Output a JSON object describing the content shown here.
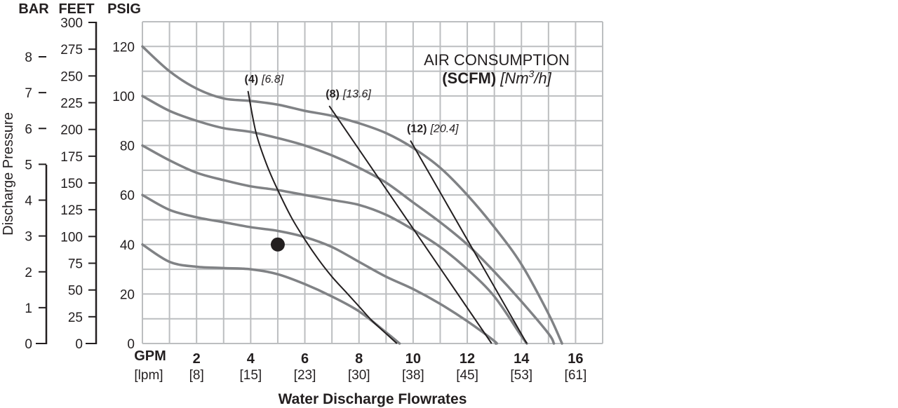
{
  "axis_headers": {
    "bar": "BAR",
    "feet": "FEET",
    "psig": "PSIG"
  },
  "ylabel": "Discharge Pressure",
  "xlabel": "Water Discharge Flowrates",
  "legend": {
    "line1": "AIR CONSUMPTION",
    "line2_bold": "(SCFM)",
    "line2_italic_a": "[Nm",
    "line2_sup": "3",
    "line2_italic_b": "/h]"
  },
  "colors": {
    "grid": "#bcbec0",
    "pressure_curve": "#808285",
    "air_curve": "#231f20",
    "text": "#231f20"
  },
  "chart_data": {
    "type": "line",
    "x_unit": "GPM",
    "x_unit_alt": "[lpm]",
    "y_unit": "PSIG",
    "xlim": [
      0,
      17
    ],
    "ylim": [
      0,
      130
    ],
    "grid": true,
    "x_ticks": [
      {
        "main": "2",
        "sub": "[8]"
      },
      {
        "main": "4",
        "sub": "[15]"
      },
      {
        "main": "6",
        "sub": "[23]"
      },
      {
        "main": "8",
        "sub": "[30]"
      },
      {
        "main": "10",
        "sub": "[38]"
      },
      {
        "main": "12",
        "sub": "[45]"
      },
      {
        "main": "14",
        "sub": "[53]"
      },
      {
        "main": "16",
        "sub": "[61]"
      }
    ],
    "psig_ticks": [
      "120",
      "100",
      "80",
      "60",
      "40",
      "20",
      "0"
    ],
    "feet_ticks": [
      "300",
      "275",
      "250",
      "225",
      "200",
      "175",
      "150",
      "125",
      "100",
      "75",
      "50",
      "25",
      "0"
    ],
    "bar_ticks": [
      "8",
      "7",
      "6",
      "5",
      "4",
      "3",
      "2",
      "1",
      "0"
    ],
    "pressure_series": [
      {
        "points": [
          [
            0,
            120
          ],
          [
            1,
            110
          ],
          [
            2,
            103
          ],
          [
            3,
            99
          ],
          [
            4,
            98
          ],
          [
            5,
            96.5
          ],
          [
            6,
            94
          ],
          [
            7,
            92
          ],
          [
            8,
            89
          ],
          [
            9,
            85
          ],
          [
            10,
            79
          ],
          [
            11,
            71
          ],
          [
            12,
            60
          ],
          [
            13,
            47
          ],
          [
            14,
            32
          ],
          [
            15,
            12
          ],
          [
            15.5,
            0
          ]
        ]
      },
      {
        "points": [
          [
            0,
            100
          ],
          [
            1,
            94
          ],
          [
            2,
            90
          ],
          [
            3,
            87
          ],
          [
            4,
            85.5
          ],
          [
            5,
            83
          ],
          [
            6,
            80
          ],
          [
            7,
            76
          ],
          [
            8,
            71
          ],
          [
            9,
            65
          ],
          [
            10,
            57
          ],
          [
            11,
            49
          ],
          [
            12,
            40
          ],
          [
            13,
            29
          ],
          [
            14,
            17
          ],
          [
            15,
            4
          ],
          [
            15.2,
            0
          ]
        ]
      },
      {
        "points": [
          [
            0,
            80
          ],
          [
            1,
            74
          ],
          [
            2,
            69
          ],
          [
            3,
            66
          ],
          [
            4,
            63.5
          ],
          [
            5,
            62
          ],
          [
            6,
            60
          ],
          [
            7,
            58
          ],
          [
            8,
            56
          ],
          [
            9,
            52
          ],
          [
            10,
            46
          ],
          [
            11,
            39
          ],
          [
            12,
            30
          ],
          [
            13,
            19
          ],
          [
            14,
            3
          ],
          [
            14.2,
            0
          ]
        ]
      },
      {
        "points": [
          [
            0,
            60
          ],
          [
            1,
            54
          ],
          [
            2,
            51
          ],
          [
            3,
            49
          ],
          [
            4,
            47
          ],
          [
            5,
            45.5
          ],
          [
            6,
            43
          ],
          [
            7,
            39
          ],
          [
            8,
            33
          ],
          [
            9,
            27
          ],
          [
            10,
            22
          ],
          [
            11,
            16
          ],
          [
            12,
            9
          ],
          [
            13,
            1
          ],
          [
            13.05,
            0
          ]
        ]
      },
      {
        "points": [
          [
            0,
            40
          ],
          [
            1,
            33
          ],
          [
            2,
            31
          ],
          [
            3,
            30.5
          ],
          [
            4,
            30
          ],
          [
            5,
            28
          ],
          [
            6,
            24
          ],
          [
            7,
            19
          ],
          [
            8,
            13
          ],
          [
            9,
            4.5
          ],
          [
            9.5,
            0
          ]
        ]
      }
    ],
    "air_series": [
      {
        "label_bold": "(4)",
        "label_italic": "[6.8]",
        "points": [
          [
            3.9,
            102
          ],
          [
            4.2,
            85
          ],
          [
            4.6,
            72
          ],
          [
            5,
            62
          ],
          [
            5.5,
            51
          ],
          [
            6,
            42
          ],
          [
            6.5,
            34
          ],
          [
            7,
            27
          ],
          [
            7.5,
            21
          ],
          [
            8,
            15
          ],
          [
            8.5,
            9
          ],
          [
            9,
            4
          ],
          [
            9.4,
            0
          ]
        ]
      },
      {
        "label_bold": "(8)",
        "label_italic": "[13.6]",
        "points": [
          [
            6.9,
            96
          ],
          [
            12.9,
            0
          ]
        ]
      },
      {
        "label_bold": "(12)",
        "label_italic": "[20.4]",
        "points": [
          [
            9.9,
            82
          ],
          [
            14.2,
            0
          ]
        ]
      }
    ],
    "marker": {
      "x": 5,
      "y": 40
    }
  }
}
